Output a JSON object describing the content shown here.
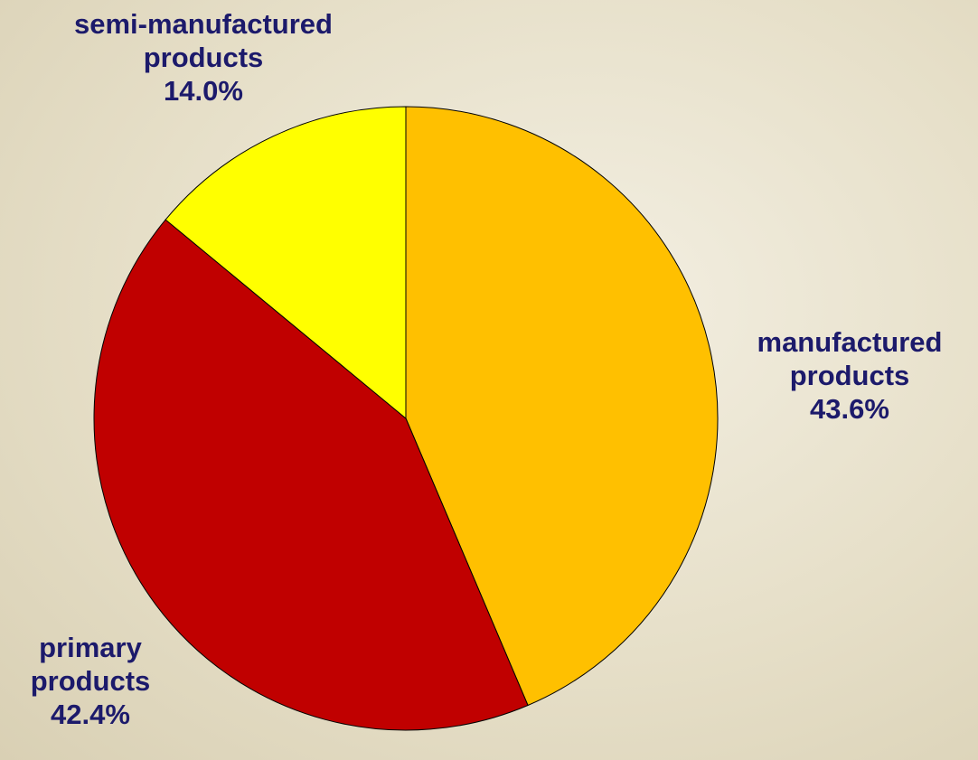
{
  "chart_data": {
    "type": "pie",
    "categories": [
      "manufactured products",
      "primary products",
      "semi-manufactured products"
    ],
    "values": [
      43.6,
      42.4,
      14.0
    ],
    "value_labels": [
      "43.6%",
      "42.4%",
      "14.0%"
    ],
    "colors": [
      "#FFC000",
      "#C00000",
      "#FFFF00"
    ]
  }
}
